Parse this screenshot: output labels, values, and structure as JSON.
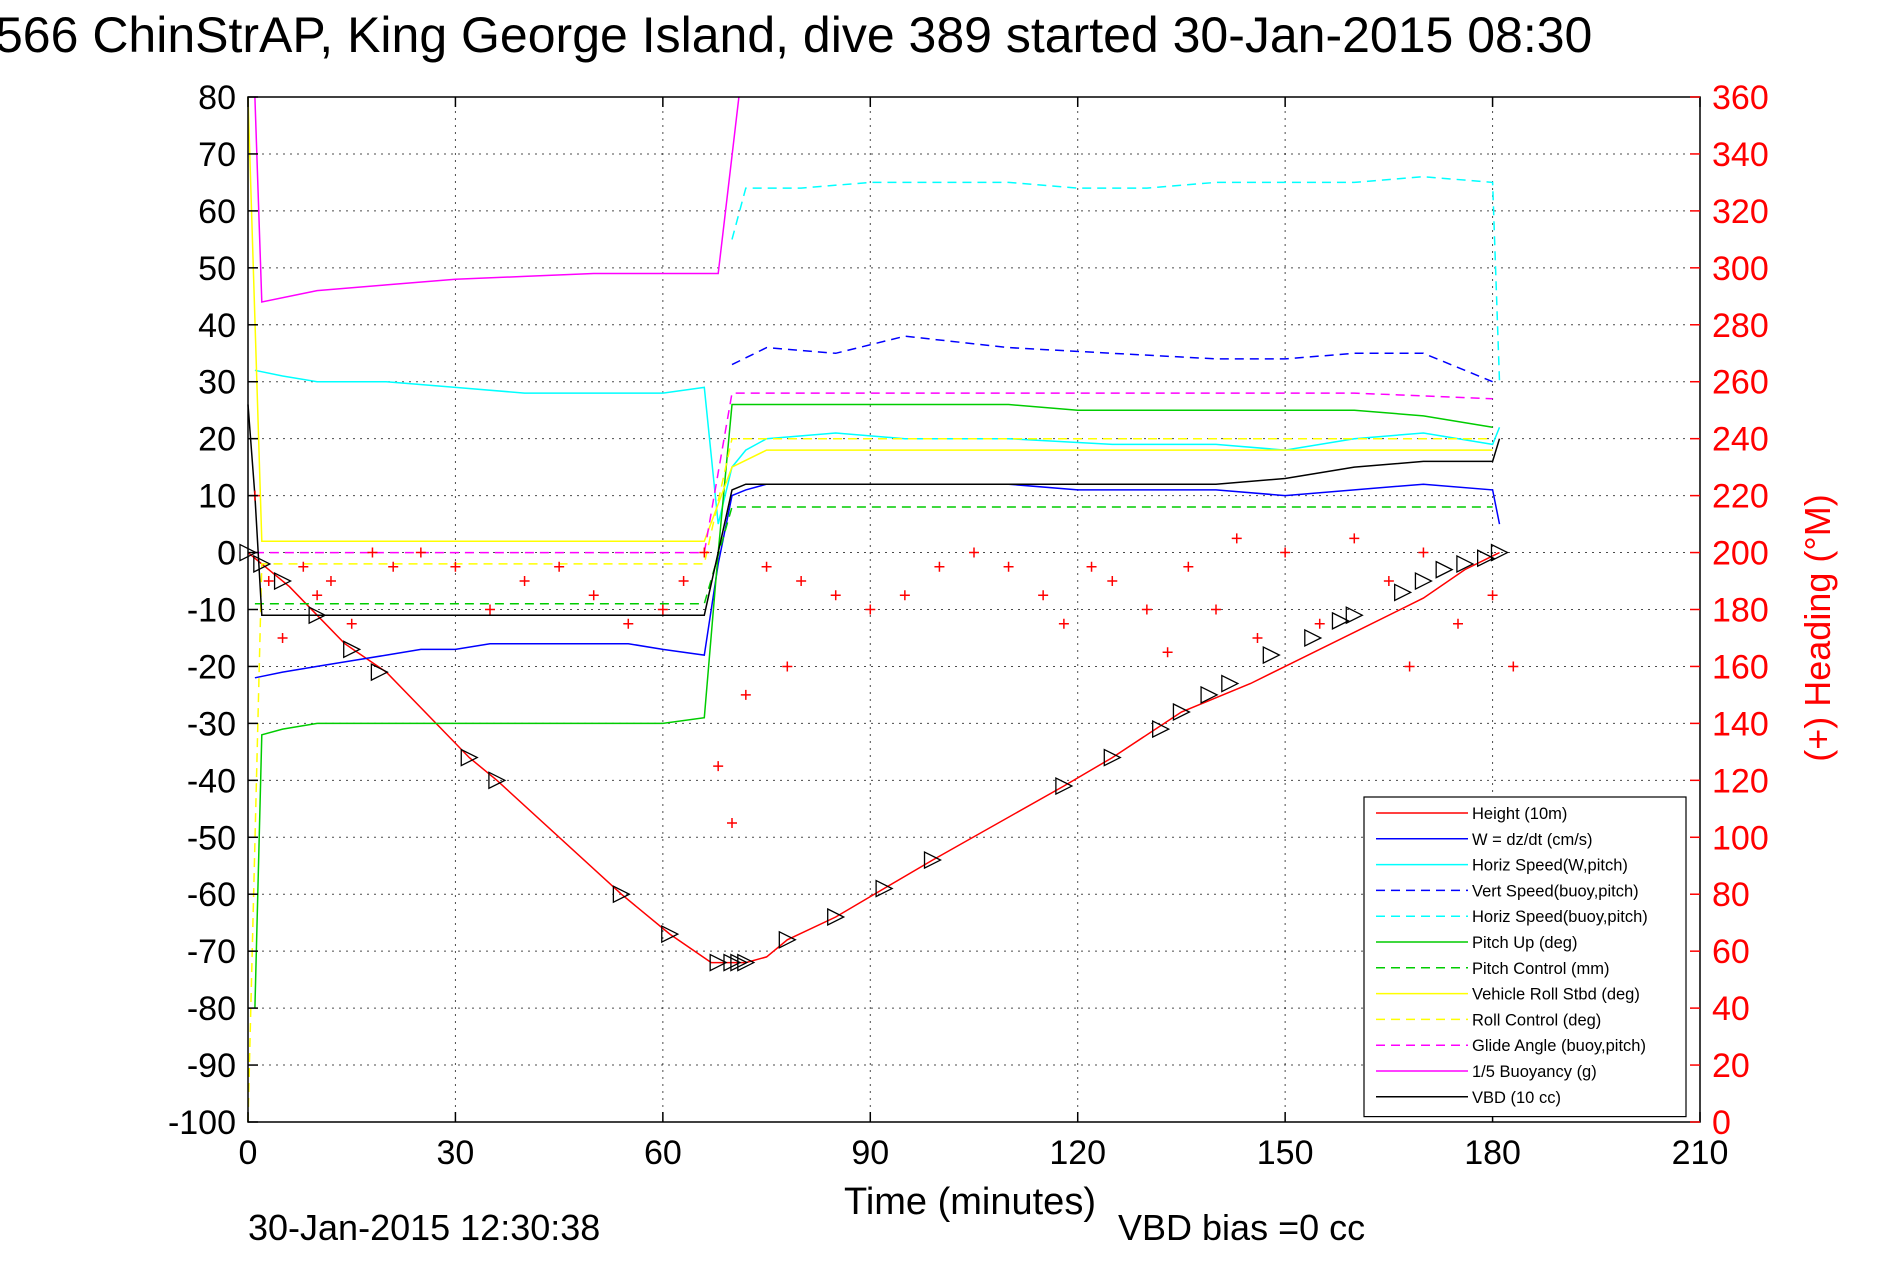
{
  "chart_data": {
    "type": "line",
    "title": "566 ChinStrAP, King George Island, dive 389 started 30-Jan-2015 08:30",
    "xlabel": "Time (minutes)",
    "ylabel_left": "",
    "ylabel_right": "(+) Heading (°M)",
    "xlim": [
      0,
      210
    ],
    "ylim_left": [
      -100,
      80
    ],
    "ylim_right": [
      0,
      360
    ],
    "x_ticks": [
      0,
      30,
      60,
      90,
      120,
      150,
      180,
      210
    ],
    "y_ticks_left": [
      -100,
      -90,
      -80,
      -70,
      -60,
      -50,
      -40,
      -30,
      -20,
      -10,
      0,
      10,
      20,
      30,
      40,
      50,
      60,
      70,
      80
    ],
    "y_ticks_right": [
      0,
      20,
      40,
      60,
      80,
      100,
      120,
      140,
      160,
      180,
      200,
      220,
      240,
      260,
      280,
      300,
      320,
      340,
      360
    ],
    "grid": true,
    "legend_position": "bottom-right",
    "footer_left": "30-Jan-2015 12:30:38",
    "footer_right": "VBD bias =0 cc",
    "colors": {
      "heading_axis": "#ff0000",
      "axis": "#000000",
      "grid": "#000000"
    },
    "series": [
      {
        "name": "Height (10m)",
        "color": "#ff0000",
        "dash": "solid",
        "x": [
          0,
          2,
          6,
          10,
          14,
          20,
          32,
          36,
          54,
          61,
          67,
          70,
          72,
          75,
          78,
          85,
          92,
          99,
          118,
          125,
          135,
          145,
          150,
          160,
          170,
          176,
          181
        ],
        "y": [
          0,
          -2,
          -6,
          -11,
          -16,
          -21,
          -36,
          -40,
          -60,
          -67,
          -72,
          -72,
          -72,
          -71,
          -68,
          -64,
          -59,
          -54,
          -41,
          -36,
          -28,
          -23,
          -20,
          -14,
          -8,
          -3,
          0
        ]
      },
      {
        "name": "W = dz/dt (cm/s)",
        "color": "#0000ff",
        "dash": "solid",
        "x": [
          1,
          5,
          10,
          15,
          20,
          25,
          30,
          35,
          40,
          45,
          50,
          55,
          60,
          66,
          68,
          70,
          72,
          75,
          80,
          90,
          100,
          110,
          120,
          130,
          140,
          150,
          160,
          170,
          180,
          181
        ],
        "y": [
          -22,
          -21,
          -20,
          -19,
          -18,
          -17,
          -17,
          -16,
          -16,
          -16,
          -16,
          -16,
          -17,
          -18,
          -2,
          10,
          11,
          12,
          12,
          12,
          12,
          12,
          11,
          11,
          11,
          10,
          11,
          12,
          11,
          5
        ]
      },
      {
        "name": "Horiz Speed(W,pitch)",
        "color": "#00ffff",
        "dash": "solid",
        "x": [
          1,
          5,
          10,
          20,
          30,
          40,
          50,
          60,
          66,
          68,
          70,
          72,
          75,
          85,
          95,
          110,
          125,
          140,
          150,
          160,
          170,
          180,
          181
        ],
        "y": [
          32,
          31,
          30,
          30,
          29,
          28,
          28,
          28,
          29,
          5,
          15,
          18,
          20,
          21,
          20,
          20,
          19,
          19,
          18,
          20,
          21,
          19,
          22
        ]
      },
      {
        "name": "Vert Speed(buoy,pitch)",
        "color": "#0000ff",
        "dash": "dashed",
        "x": [
          70,
          75,
          85,
          95,
          110,
          125,
          140,
          150,
          160,
          170,
          180
        ],
        "y": [
          33,
          36,
          35,
          38,
          36,
          35,
          34,
          34,
          35,
          35,
          30
        ]
      },
      {
        "name": "Horiz Speed(buoy,pitch)",
        "color": "#00ffff",
        "dash": "dashed",
        "x": [
          70,
          72,
          80,
          90,
          100,
          110,
          120,
          130,
          140,
          150,
          160,
          170,
          180,
          181
        ],
        "y": [
          55,
          64,
          64,
          65,
          65,
          65,
          64,
          64,
          65,
          65,
          65,
          66,
          65,
          30
        ]
      },
      {
        "name": "Pitch Up (deg)",
        "color": "#00cc00",
        "dash": "solid",
        "x": [
          1,
          2,
          5,
          10,
          20,
          30,
          40,
          50,
          60,
          66,
          68,
          70,
          72,
          80,
          90,
          100,
          110,
          120,
          130,
          140,
          150,
          160,
          170,
          180
        ],
        "y": [
          -80,
          -32,
          -31,
          -30,
          -30,
          -30,
          -30,
          -30,
          -30,
          -29,
          0,
          26,
          26,
          26,
          26,
          26,
          26,
          25,
          25,
          25,
          25,
          25,
          24,
          22
        ]
      },
      {
        "name": "Pitch Control (mm)",
        "color": "#00cc00",
        "dash": "dashed",
        "x": [
          1,
          10,
          20,
          30,
          40,
          50,
          60,
          66,
          70,
          80,
          100,
          120,
          140,
          160,
          180
        ],
        "y": [
          -9,
          -9,
          -9,
          -9,
          -9,
          -9,
          -9,
          -9,
          8,
          8,
          8,
          8,
          8,
          8,
          8
        ]
      },
      {
        "name": "Vehicle Roll Stbd (deg)",
        "color": "#ffff00",
        "dash": "solid",
        "x": [
          0,
          2,
          10,
          20,
          30,
          40,
          50,
          60,
          66,
          70,
          75,
          90,
          110,
          130,
          150,
          170,
          180
        ],
        "y": [
          80,
          2,
          2,
          2,
          2,
          2,
          2,
          2,
          2,
          15,
          18,
          18,
          18,
          18,
          18,
          18,
          18
        ]
      },
      {
        "name": "Roll Control (deg)",
        "color": "#ffff00",
        "dash": "dashed",
        "x": [
          0,
          2,
          10,
          30,
          50,
          66,
          70,
          90,
          120,
          150,
          180
        ],
        "y": [
          -100,
          -2,
          -2,
          -2,
          -2,
          -2,
          20,
          20,
          20,
          20,
          20
        ]
      },
      {
        "name": "Glide Angle (buoy,pitch)",
        "color": "#ff00ff",
        "dash": "dashed",
        "x": [
          1,
          10,
          30,
          50,
          66,
          70,
          80,
          100,
          120,
          140,
          160,
          180
        ],
        "y": [
          0,
          0,
          0,
          0,
          0,
          28,
          28,
          28,
          28,
          28,
          28,
          27
        ]
      },
      {
        "name": "1/5 Buoyancy (g)",
        "color": "#ff00ff",
        "dash": "solid",
        "x": [
          1,
          2,
          10,
          20,
          30,
          40,
          50,
          60,
          68,
          71
        ],
        "y": [
          80,
          44,
          46,
          47,
          48,
          48.5,
          49,
          49,
          49,
          80
        ]
      },
      {
        "name": "VBD (10 cc)",
        "color": "#000000",
        "dash": "solid",
        "x": [
          0,
          1,
          2,
          10,
          30,
          50,
          66,
          70,
          72,
          80,
          100,
          120,
          140,
          150,
          160,
          170,
          180,
          181
        ],
        "y": [
          26,
          10,
          -11,
          -11,
          -11,
          -11,
          -11,
          11,
          12,
          12,
          12,
          12,
          12,
          13,
          15,
          16,
          16,
          20
        ]
      },
      {
        "name": "(+) Heading (°M)",
        "color": "#ff0000",
        "dash": "markers",
        "axis": "right",
        "x": [
          1,
          3,
          5,
          8,
          10,
          12,
          15,
          18,
          21,
          25,
          30,
          35,
          40,
          45,
          50,
          55,
          60,
          63,
          66,
          68,
          70,
          72,
          75,
          78,
          80,
          85,
          90,
          95,
          100,
          105,
          110,
          115,
          118,
          122,
          125,
          130,
          133,
          136,
          140,
          143,
          146,
          150,
          155,
          160,
          165,
          168,
          170,
          175,
          180,
          183
        ],
        "y": [
          220,
          190,
          170,
          195,
          185,
          190,
          175,
          200,
          195,
          200,
          195,
          180,
          190,
          195,
          185,
          175,
          180,
          190,
          200,
          125,
          105,
          150,
          195,
          160,
          190,
          185,
          180,
          185,
          195,
          200,
          195,
          185,
          175,
          195,
          190,
          180,
          165,
          195,
          180,
          205,
          170,
          200,
          175,
          205,
          190,
          160,
          200,
          175,
          185,
          160
        ]
      }
    ],
    "markers": {
      "name": "Height samples",
      "color": "#000000",
      "x": [
        0,
        2,
        5,
        10,
        15,
        19,
        32,
        36,
        54,
        61,
        68,
        70,
        71,
        72,
        78,
        85,
        92,
        99,
        118,
        125,
        132,
        135,
        139,
        142,
        148,
        154,
        158,
        160,
        167,
        170,
        173,
        176,
        179,
        181
      ],
      "y": [
        0,
        -2,
        -5,
        -11,
        -17,
        -21,
        -36,
        -40,
        -60,
        -67,
        -72,
        -72,
        -72,
        -72,
        -68,
        -64,
        -59,
        -54,
        -41,
        -36,
        -31,
        -28,
        -25,
        -23,
        -18,
        -15,
        -12,
        -11,
        -7,
        -5,
        -3,
        -2,
        -1,
        0
      ]
    }
  }
}
